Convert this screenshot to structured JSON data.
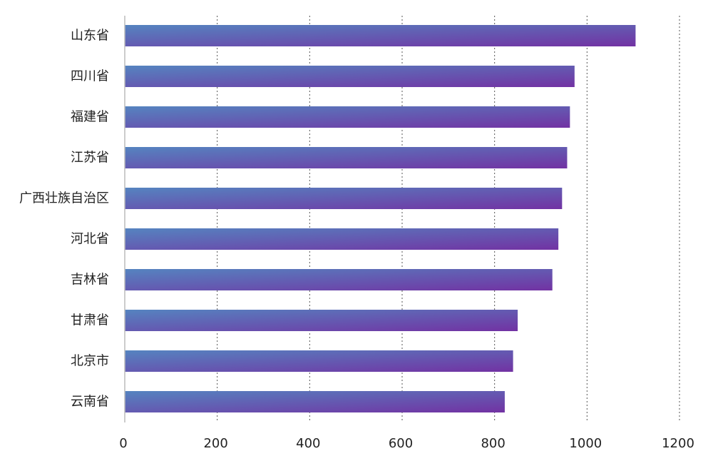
{
  "chart_data": {
    "type": "bar",
    "orientation": "horizontal",
    "categories": [
      "山东省",
      "四川省",
      "福建省",
      "江苏省",
      "广西壮族自治区",
      "河北省",
      "吉林省",
      "甘肃省",
      "北京市",
      "云南省"
    ],
    "values": [
      1105,
      973,
      963,
      957,
      946,
      938,
      925,
      850,
      840,
      822
    ],
    "xlim": [
      0,
      1200
    ],
    "x_ticks": [
      0,
      200,
      400,
      600,
      800,
      1000,
      1200
    ],
    "x_tick_labels": [
      "0",
      "200",
      "400",
      "600",
      "800",
      "1000",
      "1200"
    ],
    "grid": "vertical-dotted",
    "legend": "none",
    "title": "",
    "xlabel": "",
    "ylabel": "",
    "colors": {
      "bar_start": "#5584c0",
      "bar_end": "#7232a3",
      "grid": "#555555",
      "axis": "#bbbbbb",
      "text": "#222222"
    }
  }
}
